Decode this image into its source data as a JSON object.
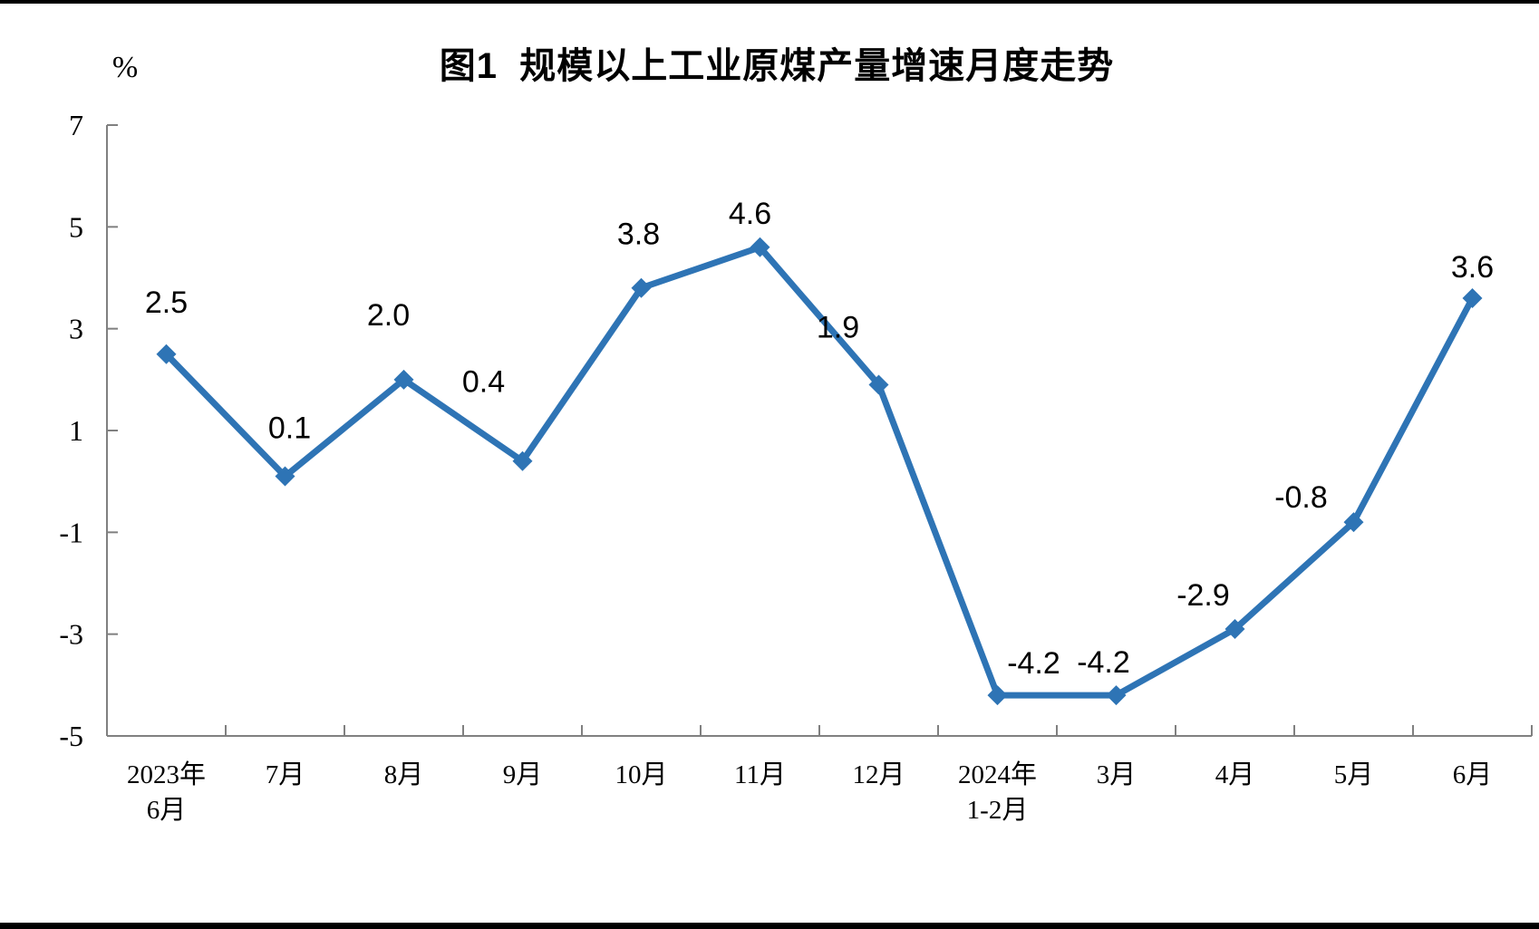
{
  "page": {
    "background": "#ffffff",
    "top_bar_color": "#000000",
    "bottom_bar_color": "#000000"
  },
  "chart_data": {
    "type": "line",
    "title": "图1  规模以上工业原煤产量增速月度走势",
    "unit_label": "%",
    "categories": [
      "2023年\n6月",
      "7月",
      "8月",
      "9月",
      "10月",
      "11月",
      "12月",
      "2024年\n1-2月",
      "3月",
      "4月",
      "5月",
      "6月"
    ],
    "values": [
      2.5,
      0.1,
      2.0,
      0.4,
      3.8,
      4.6,
      1.9,
      -4.2,
      -4.2,
      -2.9,
      -0.8,
      3.6
    ],
    "data_labels": [
      "2.5",
      "0.1",
      "2.0",
      "0.4",
      "3.8",
      "4.6",
      "1.9",
      "-4.2",
      "-4.2",
      "-2.9",
      "-0.8",
      "3.6"
    ],
    "y_ticks": [
      7,
      5,
      3,
      1,
      -1,
      -3,
      -5
    ],
    "ylim": [
      -5,
      7
    ],
    "xlabel": "",
    "ylabel": "%",
    "grid": false,
    "legend": false,
    "line_color": "#2E74B5",
    "marker": "diamond",
    "axis_color": "#808080",
    "label_color": "#000000"
  }
}
